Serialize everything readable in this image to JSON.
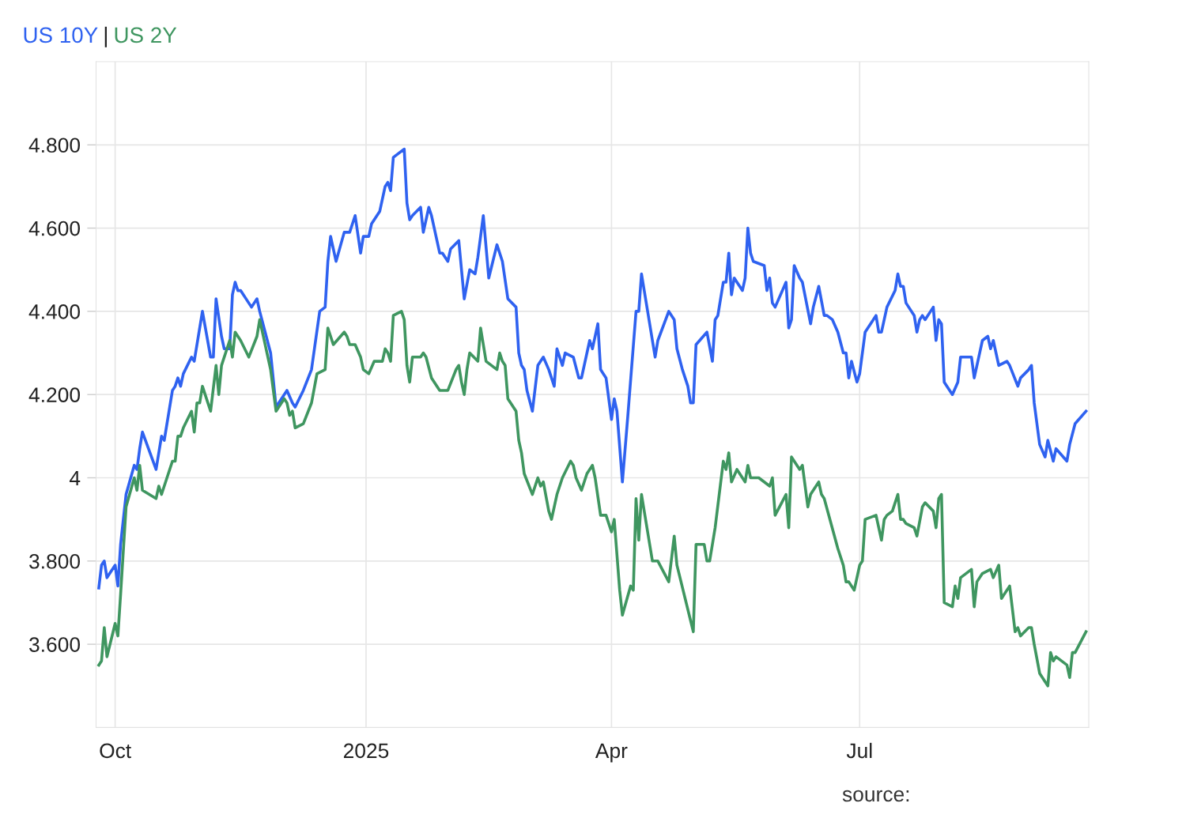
{
  "chart_data": {
    "type": "line",
    "title": "|",
    "xlim": [
      "2024-09-24",
      "2025-09-23"
    ],
    "xticks": [
      {
        "value": "2024-10-01",
        "label": "Oct"
      },
      {
        "value": "2025-01-01",
        "label": "2025"
      },
      {
        "value": "2025-04-01",
        "label": "Apr"
      },
      {
        "value": "2025-07-01",
        "label": "Jul"
      }
    ],
    "ylim": [
      3.4,
      5.0
    ],
    "yticks": [
      {
        "value": 3.6,
        "label": "3.600"
      },
      {
        "value": 3.8,
        "label": "3.800"
      },
      {
        "value": 4.0,
        "label": "4"
      },
      {
        "value": 4.2,
        "label": "4.200"
      },
      {
        "value": 4.4,
        "label": "4.400"
      },
      {
        "value": 4.6,
        "label": "4.600"
      },
      {
        "value": 4.8,
        "label": "4.800"
      }
    ],
    "grid": true,
    "legend": "top left",
    "marker": "none",
    "line_style": "solid",
    "annotations": [
      "source:"
    ],
    "series": [
      {
        "name": "US 10Y",
        "color": "#2f62f0",
        "x": [
          "2024-09-25",
          "2024-09-26",
          "2024-09-27",
          "2024-09-28",
          "2024-10-01",
          "2024-10-02",
          "2024-10-03",
          "2024-10-05",
          "2024-10-08",
          "2024-10-09",
          "2024-10-10",
          "2024-10-11",
          "2024-10-16",
          "2024-10-18",
          "2024-10-19",
          "2024-10-22",
          "2024-10-23",
          "2024-10-24",
          "2024-10-25",
          "2024-10-26",
          "2024-10-29",
          "2024-10-30",
          "2024-11-02",
          "2024-11-05",
          "2024-11-06",
          "2024-11-07",
          "2024-11-09",
          "2024-11-10",
          "2024-11-12",
          "2024-11-13",
          "2024-11-14",
          "2024-11-15",
          "2024-11-16",
          "2024-11-19",
          "2024-11-20",
          "2024-11-22",
          "2024-11-23",
          "2024-11-27",
          "2024-11-29",
          "2024-12-02",
          "2024-12-03",
          "2024-12-05",
          "2024-12-06",
          "2024-12-09",
          "2024-12-12",
          "2024-12-15",
          "2024-12-17",
          "2024-12-18",
          "2024-12-19",
          "2024-12-21",
          "2024-12-24",
          "2024-12-26",
          "2024-12-28",
          "2024-12-30",
          "2024-12-31",
          "2025-01-02",
          "2025-01-03",
          "2025-01-06",
          "2025-01-08",
          "2025-01-09",
          "2025-01-10",
          "2025-01-11",
          "2025-01-15",
          "2025-01-16",
          "2025-01-17",
          "2025-01-18",
          "2025-01-21",
          "2025-01-22",
          "2025-01-24",
          "2025-01-25",
          "2025-01-28",
          "2025-01-29",
          "2025-01-31",
          "2025-02-01",
          "2025-02-04",
          "2025-02-06",
          "2025-02-08",
          "2025-02-10",
          "2025-02-11",
          "2025-02-13",
          "2025-02-15",
          "2025-02-18",
          "2025-02-20",
          "2025-02-22",
          "2025-02-25",
          "2025-02-26",
          "2025-02-27",
          "2025-02-28",
          "2025-03-01",
          "2025-03-03",
          "2025-03-05",
          "2025-03-07",
          "2025-03-09",
          "2025-03-11",
          "2025-03-12",
          "2025-03-14",
          "2025-03-15",
          "2025-03-18",
          "2025-03-20",
          "2025-03-21",
          "2025-03-24",
          "2025-03-25",
          "2025-03-27",
          "2025-03-28",
          "2025-03-30",
          "2025-04-01",
          "2025-04-02",
          "2025-04-03",
          "2025-04-05",
          "2025-04-07",
          "2025-04-10",
          "2025-04-11",
          "2025-04-12",
          "2025-04-17",
          "2025-04-18",
          "2025-04-22",
          "2025-04-23",
          "2025-04-24",
          "2025-04-25",
          "2025-04-27",
          "2025-04-29",
          "2025-04-30",
          "2025-05-01",
          "2025-05-02",
          "2025-05-06",
          "2025-05-08",
          "2025-05-09",
          "2025-05-10",
          "2025-05-12",
          "2025-05-13",
          "2025-05-14",
          "2025-05-15",
          "2025-05-16",
          "2025-05-19",
          "2025-05-20",
          "2025-05-21",
          "2025-05-22",
          "2025-05-23",
          "2025-05-27",
          "2025-05-28",
          "2025-05-29",
          "2025-05-30",
          "2025-05-31",
          "2025-06-04",
          "2025-06-05",
          "2025-06-06",
          "2025-06-07",
          "2025-06-09",
          "2025-06-10",
          "2025-06-13",
          "2025-06-14",
          "2025-06-16",
          "2025-06-18",
          "2025-06-19",
          "2025-06-21",
          "2025-06-23",
          "2025-06-25",
          "2025-06-26",
          "2025-06-27",
          "2025-06-28",
          "2025-06-30",
          "2025-07-01",
          "2025-07-03",
          "2025-07-06",
          "2025-07-07",
          "2025-07-08",
          "2025-07-09",
          "2025-07-11",
          "2025-07-14",
          "2025-07-15",
          "2025-07-16",
          "2025-07-17",
          "2025-07-18",
          "2025-07-21",
          "2025-07-22",
          "2025-07-23",
          "2025-07-24",
          "2025-07-25",
          "2025-07-28",
          "2025-07-29",
          "2025-07-30",
          "2025-07-31",
          "2025-08-01",
          "2025-08-04",
          "2025-08-06",
          "2025-08-07",
          "2025-08-11",
          "2025-08-12",
          "2025-08-14",
          "2025-08-15",
          "2025-08-17",
          "2025-08-18",
          "2025-08-19",
          "2025-08-21",
          "2025-08-24",
          "2025-08-25",
          "2025-08-28",
          "2025-08-29",
          "2025-09-01",
          "2025-09-02",
          "2025-09-03",
          "2025-09-05",
          "2025-09-07",
          "2025-09-08",
          "2025-09-10",
          "2025-09-11",
          "2025-09-15",
          "2025-09-16",
          "2025-09-18",
          "2025-09-22"
        ],
        "values": [
          3.735,
          3.79,
          3.8,
          3.76,
          3.79,
          3.74,
          3.84,
          3.96,
          4.03,
          4.02,
          4.07,
          4.11,
          4.02,
          4.1,
          4.09,
          4.21,
          4.22,
          4.24,
          4.22,
          4.25,
          4.29,
          4.28,
          4.4,
          4.29,
          4.29,
          4.43,
          4.34,
          4.31,
          4.31,
          4.44,
          4.47,
          4.45,
          4.45,
          4.42,
          4.41,
          4.43,
          4.4,
          4.3,
          4.17,
          4.2,
          4.21,
          4.18,
          4.17,
          4.21,
          4.26,
          4.4,
          4.41,
          4.52,
          4.58,
          4.52,
          4.59,
          4.59,
          4.63,
          4.54,
          4.58,
          4.58,
          4.61,
          4.64,
          4.7,
          4.71,
          4.69,
          4.77,
          4.79,
          4.66,
          4.62,
          4.63,
          4.65,
          4.59,
          4.65,
          4.63,
          4.54,
          4.54,
          4.52,
          4.55,
          4.57,
          4.43,
          4.5,
          4.49,
          4.53,
          4.63,
          4.48,
          4.56,
          4.52,
          4.43,
          4.41,
          4.3,
          4.27,
          4.26,
          4.21,
          4.16,
          4.27,
          4.29,
          4.26,
          4.22,
          4.31,
          4.27,
          4.3,
          4.29,
          4.24,
          4.24,
          4.33,
          4.31,
          4.37,
          4.26,
          4.24,
          4.14,
          4.19,
          4.16,
          3.99,
          4.15,
          4.4,
          4.4,
          4.49,
          4.29,
          4.33,
          4.4,
          4.39,
          4.38,
          4.31,
          4.26,
          4.22,
          4.18,
          4.18,
          4.32,
          4.35,
          4.28,
          4.38,
          4.39,
          4.47,
          4.47,
          4.54,
          4.44,
          4.48,
          4.45,
          4.48,
          4.6,
          4.54,
          4.52,
          4.51,
          4.45,
          4.48,
          4.42,
          4.41,
          4.47,
          4.36,
          4.38,
          4.51,
          4.48,
          4.47,
          4.37,
          4.41,
          4.46,
          4.39,
          4.39,
          4.38,
          4.35,
          4.3,
          4.3,
          4.24,
          4.28,
          4.23,
          4.25,
          4.35,
          4.38,
          4.39,
          4.35,
          4.35,
          4.41,
          4.45,
          4.49,
          4.46,
          4.46,
          4.42,
          4.39,
          4.35,
          4.38,
          4.39,
          4.38,
          4.41,
          4.33,
          4.38,
          4.37,
          4.23,
          4.2,
          4.23,
          4.29,
          4.29,
          4.24,
          4.3,
          4.33,
          4.34,
          4.31,
          4.33,
          4.27,
          4.28,
          4.27,
          4.22,
          4.24,
          4.26,
          4.27,
          4.18,
          4.08,
          4.05,
          4.09,
          4.04,
          4.07,
          4.04,
          4.08,
          4.13,
          4.16
        ]
      },
      {
        "name": "US 2Y",
        "color": "#3f9660",
        "x": [
          "2024-09-25",
          "2024-09-26",
          "2024-09-27",
          "2024-09-28",
          "2024-10-01",
          "2024-10-02",
          "2024-10-03",
          "2024-10-05",
          "2024-10-08",
          "2024-10-09",
          "2024-10-10",
          "2024-10-11",
          "2024-10-16",
          "2024-10-17",
          "2024-10-18",
          "2024-10-22",
          "2024-10-23",
          "2024-10-24",
          "2024-10-25",
          "2024-10-26",
          "2024-10-29",
          "2024-10-30",
          "2024-10-31",
          "2024-11-01",
          "2024-11-02",
          "2024-11-05",
          "2024-11-07",
          "2024-11-08",
          "2024-11-09",
          "2024-11-12",
          "2024-11-13",
          "2024-11-14",
          "2024-11-16",
          "2024-11-19",
          "2024-11-22",
          "2024-11-23",
          "2024-11-27",
          "2024-11-29",
          "2024-12-02",
          "2024-12-03",
          "2024-12-04",
          "2024-12-05",
          "2024-12-06",
          "2024-12-09",
          "2024-12-12",
          "2024-12-14",
          "2024-12-17",
          "2024-12-18",
          "2024-12-20",
          "2024-12-24",
          "2024-12-25",
          "2024-12-26",
          "2024-12-28",
          "2024-12-30",
          "2024-12-31",
          "2025-01-02",
          "2025-01-04",
          "2025-01-07",
          "2025-01-08",
          "2025-01-09",
          "2025-01-10",
          "2025-01-11",
          "2025-01-14",
          "2025-01-15",
          "2025-01-16",
          "2025-01-17",
          "2025-01-18",
          "2025-01-21",
          "2025-01-22",
          "2025-01-23",
          "2025-01-25",
          "2025-01-28",
          "2025-01-29",
          "2025-01-31",
          "2025-02-03",
          "2025-02-04",
          "2025-02-05",
          "2025-02-06",
          "2025-02-07",
          "2025-02-08",
          "2025-02-11",
          "2025-02-12",
          "2025-02-14",
          "2025-02-18",
          "2025-02-19",
          "2025-02-20",
          "2025-02-21",
          "2025-02-22",
          "2025-02-25",
          "2025-02-26",
          "2025-02-27",
          "2025-02-28",
          "2025-03-03",
          "2025-03-05",
          "2025-03-06",
          "2025-03-07",
          "2025-03-09",
          "2025-03-10",
          "2025-03-12",
          "2025-03-14",
          "2025-03-17",
          "2025-03-18",
          "2025-03-19",
          "2025-03-21",
          "2025-03-23",
          "2025-03-25",
          "2025-03-26",
          "2025-03-28",
          "2025-03-30",
          "2025-04-01",
          "2025-04-02",
          "2025-04-04",
          "2025-04-05",
          "2025-04-08",
          "2025-04-09",
          "2025-04-10",
          "2025-04-11",
          "2025-04-12",
          "2025-04-15",
          "2025-04-16",
          "2025-04-18",
          "2025-04-22",
          "2025-04-24",
          "2025-04-25",
          "2025-05-01",
          "2025-05-02",
          "2025-05-05",
          "2025-05-06",
          "2025-05-07",
          "2025-05-09",
          "2025-05-12",
          "2025-05-13",
          "2025-05-14",
          "2025-05-15",
          "2025-05-17",
          "2025-05-20",
          "2025-05-21",
          "2025-05-22",
          "2025-05-25",
          "2025-05-27",
          "2025-05-29",
          "2025-05-30",
          "2025-05-31",
          "2025-06-04",
          "2025-06-05",
          "2025-06-06",
          "2025-06-09",
          "2025-06-10",
          "2025-06-12",
          "2025-06-13",
          "2025-06-16",
          "2025-06-17",
          "2025-06-18",
          "2025-06-23",
          "2025-06-25",
          "2025-06-26",
          "2025-06-27",
          "2025-06-29",
          "2025-07-01",
          "2025-07-02",
          "2025-07-03",
          "2025-07-07",
          "2025-07-09",
          "2025-07-10",
          "2025-07-11",
          "2025-07-13",
          "2025-07-15",
          "2025-07-16",
          "2025-07-17",
          "2025-07-18",
          "2025-07-21",
          "2025-07-22",
          "2025-07-24",
          "2025-07-25",
          "2025-07-28",
          "2025-07-29",
          "2025-07-30",
          "2025-07-31",
          "2025-08-01",
          "2025-08-04",
          "2025-08-05",
          "2025-08-06",
          "2025-08-07",
          "2025-08-11",
          "2025-08-12",
          "2025-08-13",
          "2025-08-15",
          "2025-08-18",
          "2025-08-19",
          "2025-08-21",
          "2025-08-22",
          "2025-08-25",
          "2025-08-27",
          "2025-08-28",
          "2025-08-29",
          "2025-09-01",
          "2025-09-02",
          "2025-09-03",
          "2025-09-05",
          "2025-09-08",
          "2025-09-09",
          "2025-09-10",
          "2025-09-11",
          "2025-09-15",
          "2025-09-16",
          "2025-09-17",
          "2025-09-18",
          "2025-09-22"
        ],
        "values": [
          3.55,
          3.56,
          3.64,
          3.57,
          3.65,
          3.62,
          3.72,
          3.93,
          4.0,
          3.97,
          4.03,
          3.97,
          3.95,
          3.98,
          3.96,
          4.04,
          4.04,
          4.1,
          4.1,
          4.12,
          4.16,
          4.11,
          4.18,
          4.18,
          4.22,
          4.16,
          4.27,
          4.2,
          4.27,
          4.33,
          4.29,
          4.35,
          4.33,
          4.29,
          4.34,
          4.38,
          4.26,
          4.16,
          4.19,
          4.18,
          4.15,
          4.16,
          4.12,
          4.13,
          4.18,
          4.25,
          4.26,
          4.36,
          4.32,
          4.35,
          4.34,
          4.32,
          4.32,
          4.29,
          4.26,
          4.25,
          4.28,
          4.28,
          4.31,
          4.3,
          4.28,
          4.39,
          4.4,
          4.38,
          4.27,
          4.23,
          4.29,
          4.29,
          4.3,
          4.29,
          4.24,
          4.21,
          4.21,
          4.21,
          4.26,
          4.27,
          4.23,
          4.2,
          4.26,
          4.3,
          4.28,
          4.36,
          4.28,
          4.26,
          4.3,
          4.28,
          4.27,
          4.19,
          4.16,
          4.09,
          4.06,
          4.01,
          3.96,
          4.0,
          3.98,
          3.99,
          3.92,
          3.9,
          3.96,
          4.0,
          4.04,
          4.03,
          4.0,
          3.97,
          4.01,
          4.03,
          4.0,
          3.91,
          3.91,
          3.87,
          3.9,
          3.73,
          3.67,
          3.74,
          3.73,
          3.95,
          3.85,
          3.96,
          3.84,
          3.8,
          3.8,
          3.75,
          3.86,
          3.79,
          3.63,
          3.84,
          3.84,
          3.8,
          3.8,
          3.88,
          4.04,
          4.02,
          4.06,
          3.99,
          4.02,
          3.99,
          4.03,
          4.0,
          4.0,
          3.99,
          3.98,
          4.0,
          3.91,
          3.96,
          3.88,
          4.05,
          4.02,
          4.03,
          3.93,
          3.96,
          3.99,
          3.96,
          3.95,
          3.83,
          3.79,
          3.75,
          3.75,
          3.73,
          3.79,
          3.8,
          3.9,
          3.91,
          3.85,
          3.9,
          3.91,
          3.92,
          3.96,
          3.9,
          3.9,
          3.89,
          3.88,
          3.86,
          3.93,
          3.94,
          3.92,
          3.88,
          3.95,
          3.96,
          3.7,
          3.69,
          3.74,
          3.71,
          3.76,
          3.78,
          3.69,
          3.75,
          3.77,
          3.78,
          3.76,
          3.79,
          3.71,
          3.74,
          3.63,
          3.64,
          3.62,
          3.64,
          3.64,
          3.6,
          3.53,
          3.5,
          3.58,
          3.56,
          3.57,
          3.55,
          3.52,
          3.58,
          3.58,
          3.63
        ]
      }
    ]
  }
}
